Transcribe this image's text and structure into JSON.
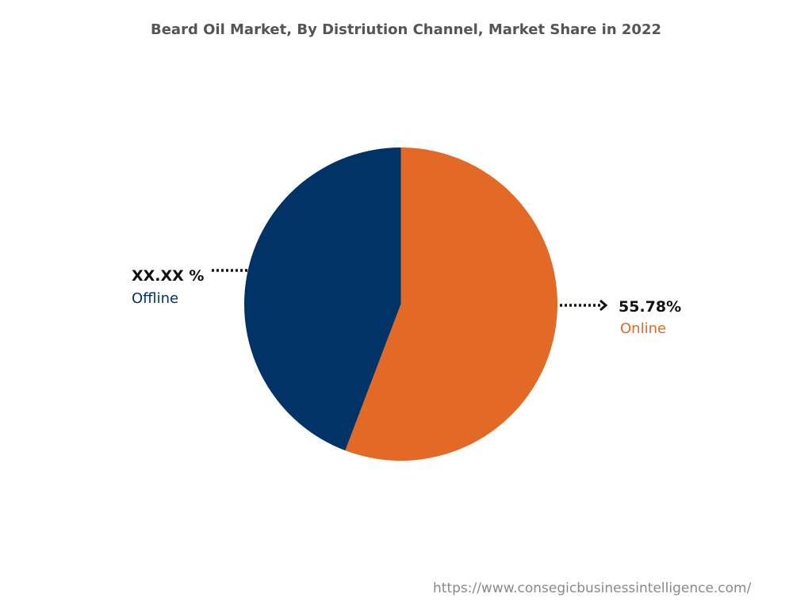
{
  "chart_data": {
    "type": "pie",
    "title": "Beard Oil Market, By Distriution Channel, Market Share in 2022",
    "slices": [
      {
        "name": "Online",
        "value": 55.78,
        "label": "55.78%",
        "color": "#E36A26"
      },
      {
        "name": "Offline",
        "value": 44.22,
        "label": "XX.XX %",
        "color": "#023366"
      }
    ]
  },
  "source_url": "https://www.consegicbusinessintelligence.com/"
}
